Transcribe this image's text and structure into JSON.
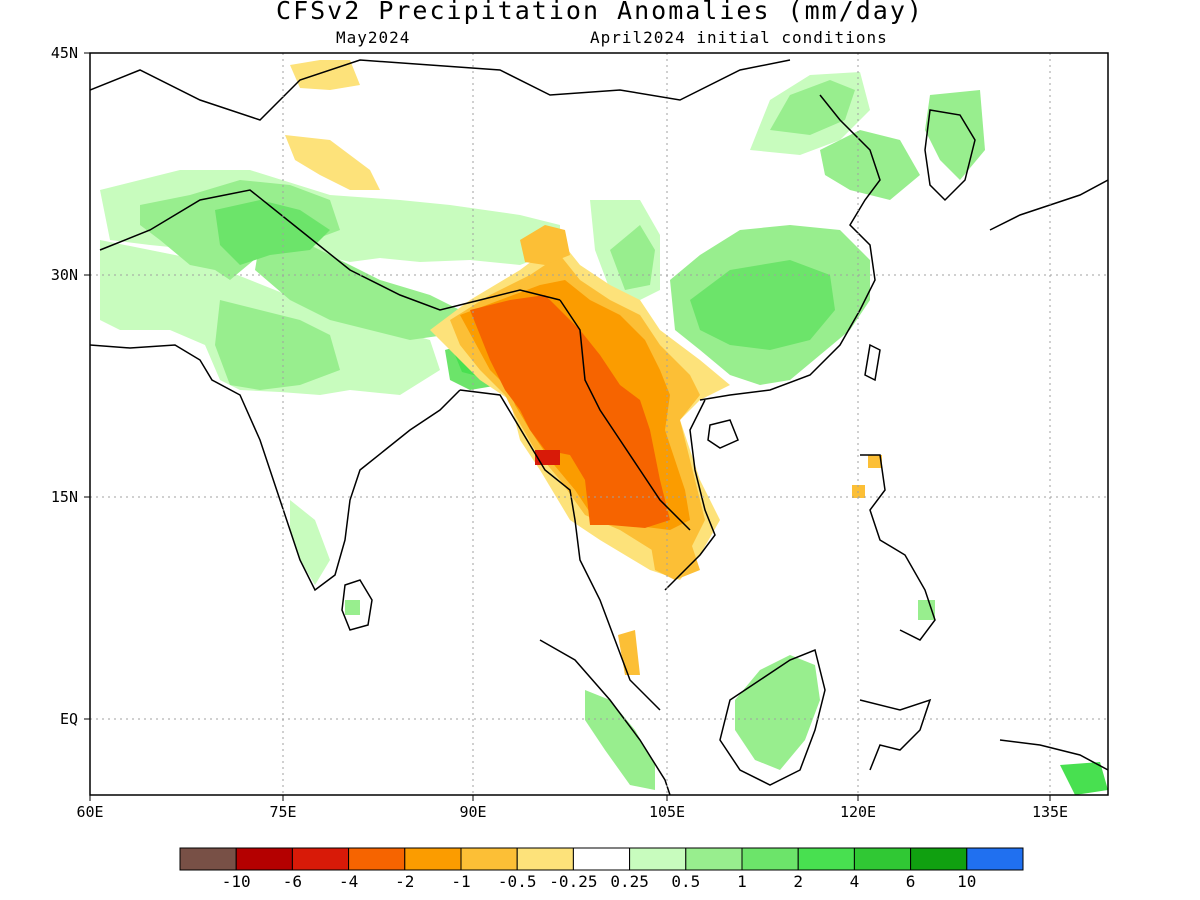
{
  "title": "CFSv2 Precipitation Anomalies (mm/day)",
  "subtitle_left": "May2024",
  "subtitle_right": "April2024 initial conditions",
  "lat_labels": [
    "45N",
    "30N",
    "15N",
    "EQ"
  ],
  "lon_labels": [
    "60E",
    "75E",
    "90E",
    "105E",
    "120E",
    "135E"
  ],
  "colorbar": {
    "colors": [
      "#785046",
      "#b40000",
      "#d81a08",
      "#f66400",
      "#fb9c00",
      "#fcbf36",
      "#fde27a",
      "#ffffff",
      "#c8fcbe",
      "#98ee8e",
      "#6ce46a",
      "#48e050",
      "#30c834",
      "#10a010",
      "#2070f0"
    ],
    "labels": [
      "-10",
      "-6",
      "-4",
      "-2",
      "-1",
      "-0.5",
      "-0.25",
      "0.25",
      "0.5",
      "1",
      "2",
      "4",
      "6",
      "10"
    ]
  },
  "legend_colors": {
    "frame": "#000000",
    "grid": "#a0a0a0"
  }
}
